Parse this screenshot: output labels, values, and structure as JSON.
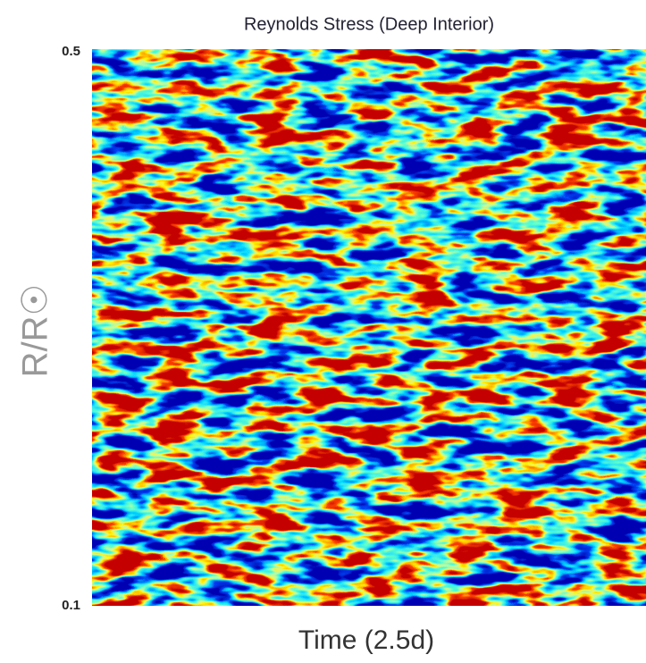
{
  "chart_data": {
    "type": "heatmap",
    "title": "Reynolds Stress (Deep Interior)",
    "xlabel": "Time (2.5d)",
    "ylabel": "R/R☉",
    "ylim": [
      0.1,
      0.5
    ],
    "yticks": [
      0.1,
      0.5
    ],
    "colormap": "jet"
  }
}
